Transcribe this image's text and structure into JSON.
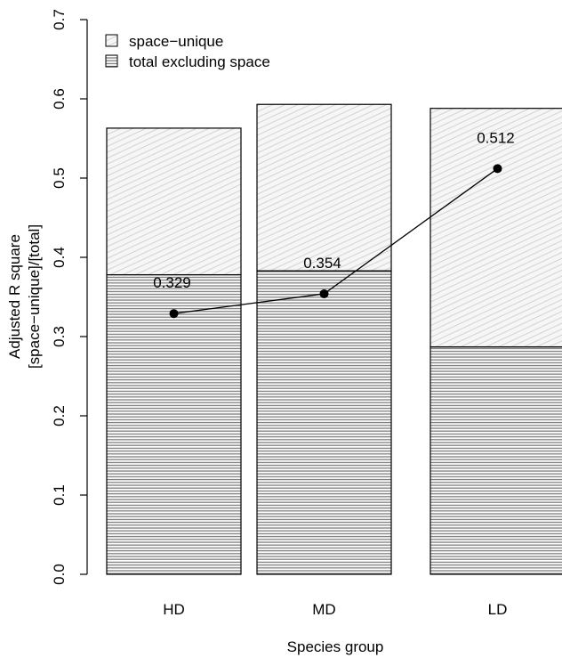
{
  "chart_data": {
    "type": "bar",
    "stacked": true,
    "categories": [
      "HD",
      "MD",
      "LD"
    ],
    "series": [
      {
        "name": "total excluding space",
        "values": [
          0.378,
          0.383,
          0.287
        ],
        "pattern": "dense-horizontal-lines",
        "color": "#8a8a8a"
      },
      {
        "name": "space−unique",
        "values": [
          0.185,
          0.21,
          0.301
        ],
        "pattern": "light-diagonal-lines",
        "color": "#d9d9d9"
      }
    ],
    "ratio_line": {
      "values": [
        0.329,
        0.354,
        0.512
      ],
      "labels": [
        "0.329",
        "0.354",
        "0.512"
      ],
      "color": "#000000"
    },
    "xlabel": "Species group",
    "ylabel_lines": [
      "Adjusted R square",
      "[space−unique]/[total]"
    ],
    "ylim": [
      0,
      0.7
    ],
    "yticks": [
      "0.0",
      "0.1",
      "0.2",
      "0.3",
      "0.4",
      "0.5",
      "0.6",
      "0.7"
    ],
    "legend_position": "top-left",
    "grid": false
  }
}
